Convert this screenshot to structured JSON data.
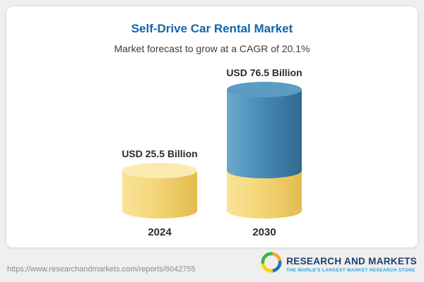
{
  "chart_data": {
    "type": "bar",
    "variant": "3d-cylinder",
    "title": "Self-Drive Car Rental Market",
    "subtitle": "Market forecast to grow at a CAGR of 20.1%",
    "categories": [
      "2024",
      "2030"
    ],
    "values": [
      25.5,
      76.5
    ],
    "unit": "USD Billion",
    "bar_labels": [
      "USD 25.5 Billion",
      "USD 76.5 Billion"
    ],
    "cagr_percent": 20.1,
    "legend": "none",
    "grid": false,
    "colors": {
      "bar_2024": "#f5d87c",
      "bar_2030_growth": "#4a8fba",
      "bar_2030_base": "#f5d87c",
      "title_text": "#1464ac"
    }
  },
  "footer": {
    "url": "https://www.researchandmarkets.com/reports/6042755",
    "logo_title": "RESEARCH AND MARKETS",
    "logo_tagline": "THE WORLD'S LARGEST MARKET RESEARCH STORE"
  }
}
